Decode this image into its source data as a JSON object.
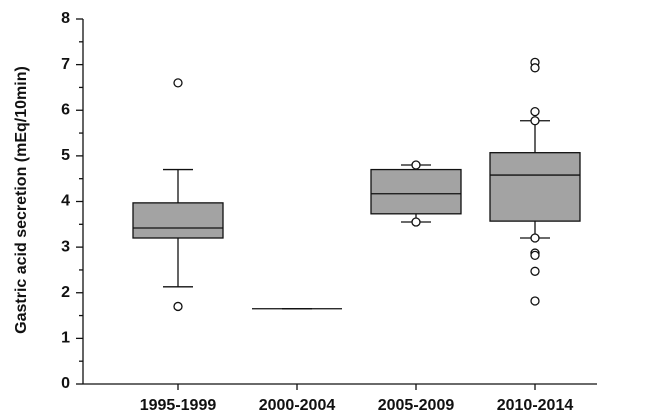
{
  "chart_data": {
    "type": "box",
    "ylabel": "Gastric acid secretion (mEq/10min)",
    "categories": [
      "1995-1999",
      "2000-2004",
      "2005-2009",
      "2010-2014"
    ],
    "boxes": [
      {
        "min": 2.13,
        "q1": 3.2,
        "median": 3.42,
        "q3": 3.97,
        "max": 4.7,
        "outliers": [
          6.6,
          1.7
        ]
      },
      {
        "min": 1.65,
        "q1": 1.65,
        "median": 1.65,
        "q3": 1.65,
        "max": 1.65,
        "outliers": []
      },
      {
        "min": 3.55,
        "q1": 3.73,
        "median": 4.17,
        "q3": 4.7,
        "max": 4.8,
        "outliers": [
          4.8,
          3.55
        ]
      },
      {
        "min": 3.2,
        "q1": 3.57,
        "median": 4.58,
        "q3": 5.07,
        "max": 5.77,
        "outliers": [
          7.05,
          6.93,
          5.97,
          5.77,
          3.2,
          2.87,
          2.82,
          2.47,
          1.82
        ]
      }
    ],
    "color": "#a3a3a3",
    "ylim": [
      0,
      8
    ],
    "yticks": [
      0,
      1,
      2,
      3,
      4,
      5,
      6,
      7,
      8
    ],
    "yminorticks": [
      0.5,
      1.5,
      2.5,
      3.5,
      4.5,
      5.5,
      6.5,
      7.5
    ],
    "grid": false
  }
}
